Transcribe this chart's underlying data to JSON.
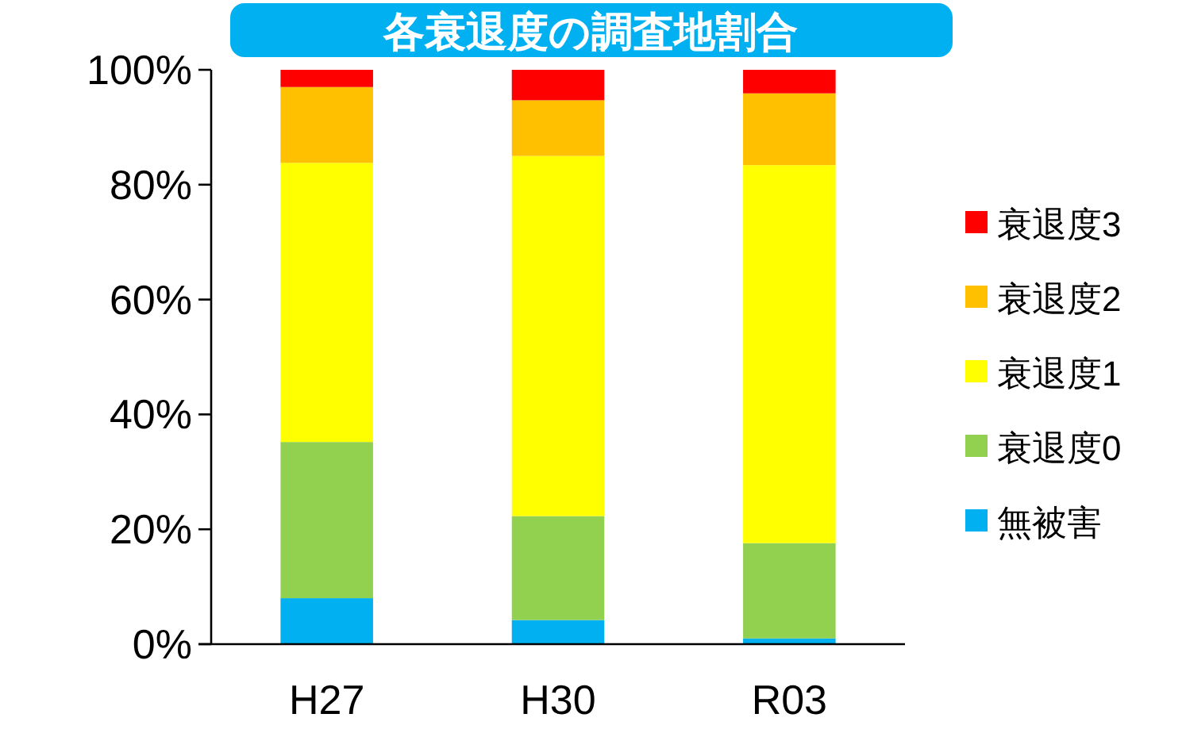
{
  "chart_data": {
    "type": "bar",
    "title": "各衰退度の調査地割合",
    "categories": [
      "H27",
      "H30",
      "R03"
    ],
    "stacked": true,
    "series": [
      {
        "name": "無被害",
        "color": "#00b0f0",
        "values": [
          8,
          4.2,
          1.0
        ]
      },
      {
        "name": "衰退度0",
        "color": "#92d050",
        "values": [
          27.2,
          18.1,
          16.6
        ]
      },
      {
        "name": "衰退度1",
        "color": "#ffff00",
        "values": [
          48.6,
          62.7,
          65.8
        ]
      },
      {
        "name": "衰退度2",
        "color": "#ffc000",
        "values": [
          13.2,
          9.7,
          12.5
        ]
      },
      {
        "name": "衰退度3",
        "color": "#ff0000",
        "values": [
          3.0,
          5.3,
          4.1
        ]
      }
    ],
    "ylim": [
      0,
      100
    ],
    "yticks": [
      {
        "value": 0,
        "label": "0%"
      },
      {
        "value": 20,
        "label": "20%"
      },
      {
        "value": 40,
        "label": "40%"
      },
      {
        "value": 60,
        "label": "60%"
      },
      {
        "value": 80,
        "label": "80%"
      },
      {
        "value": 100,
        "label": "100%"
      }
    ],
    "grid": false,
    "legend": "right"
  }
}
